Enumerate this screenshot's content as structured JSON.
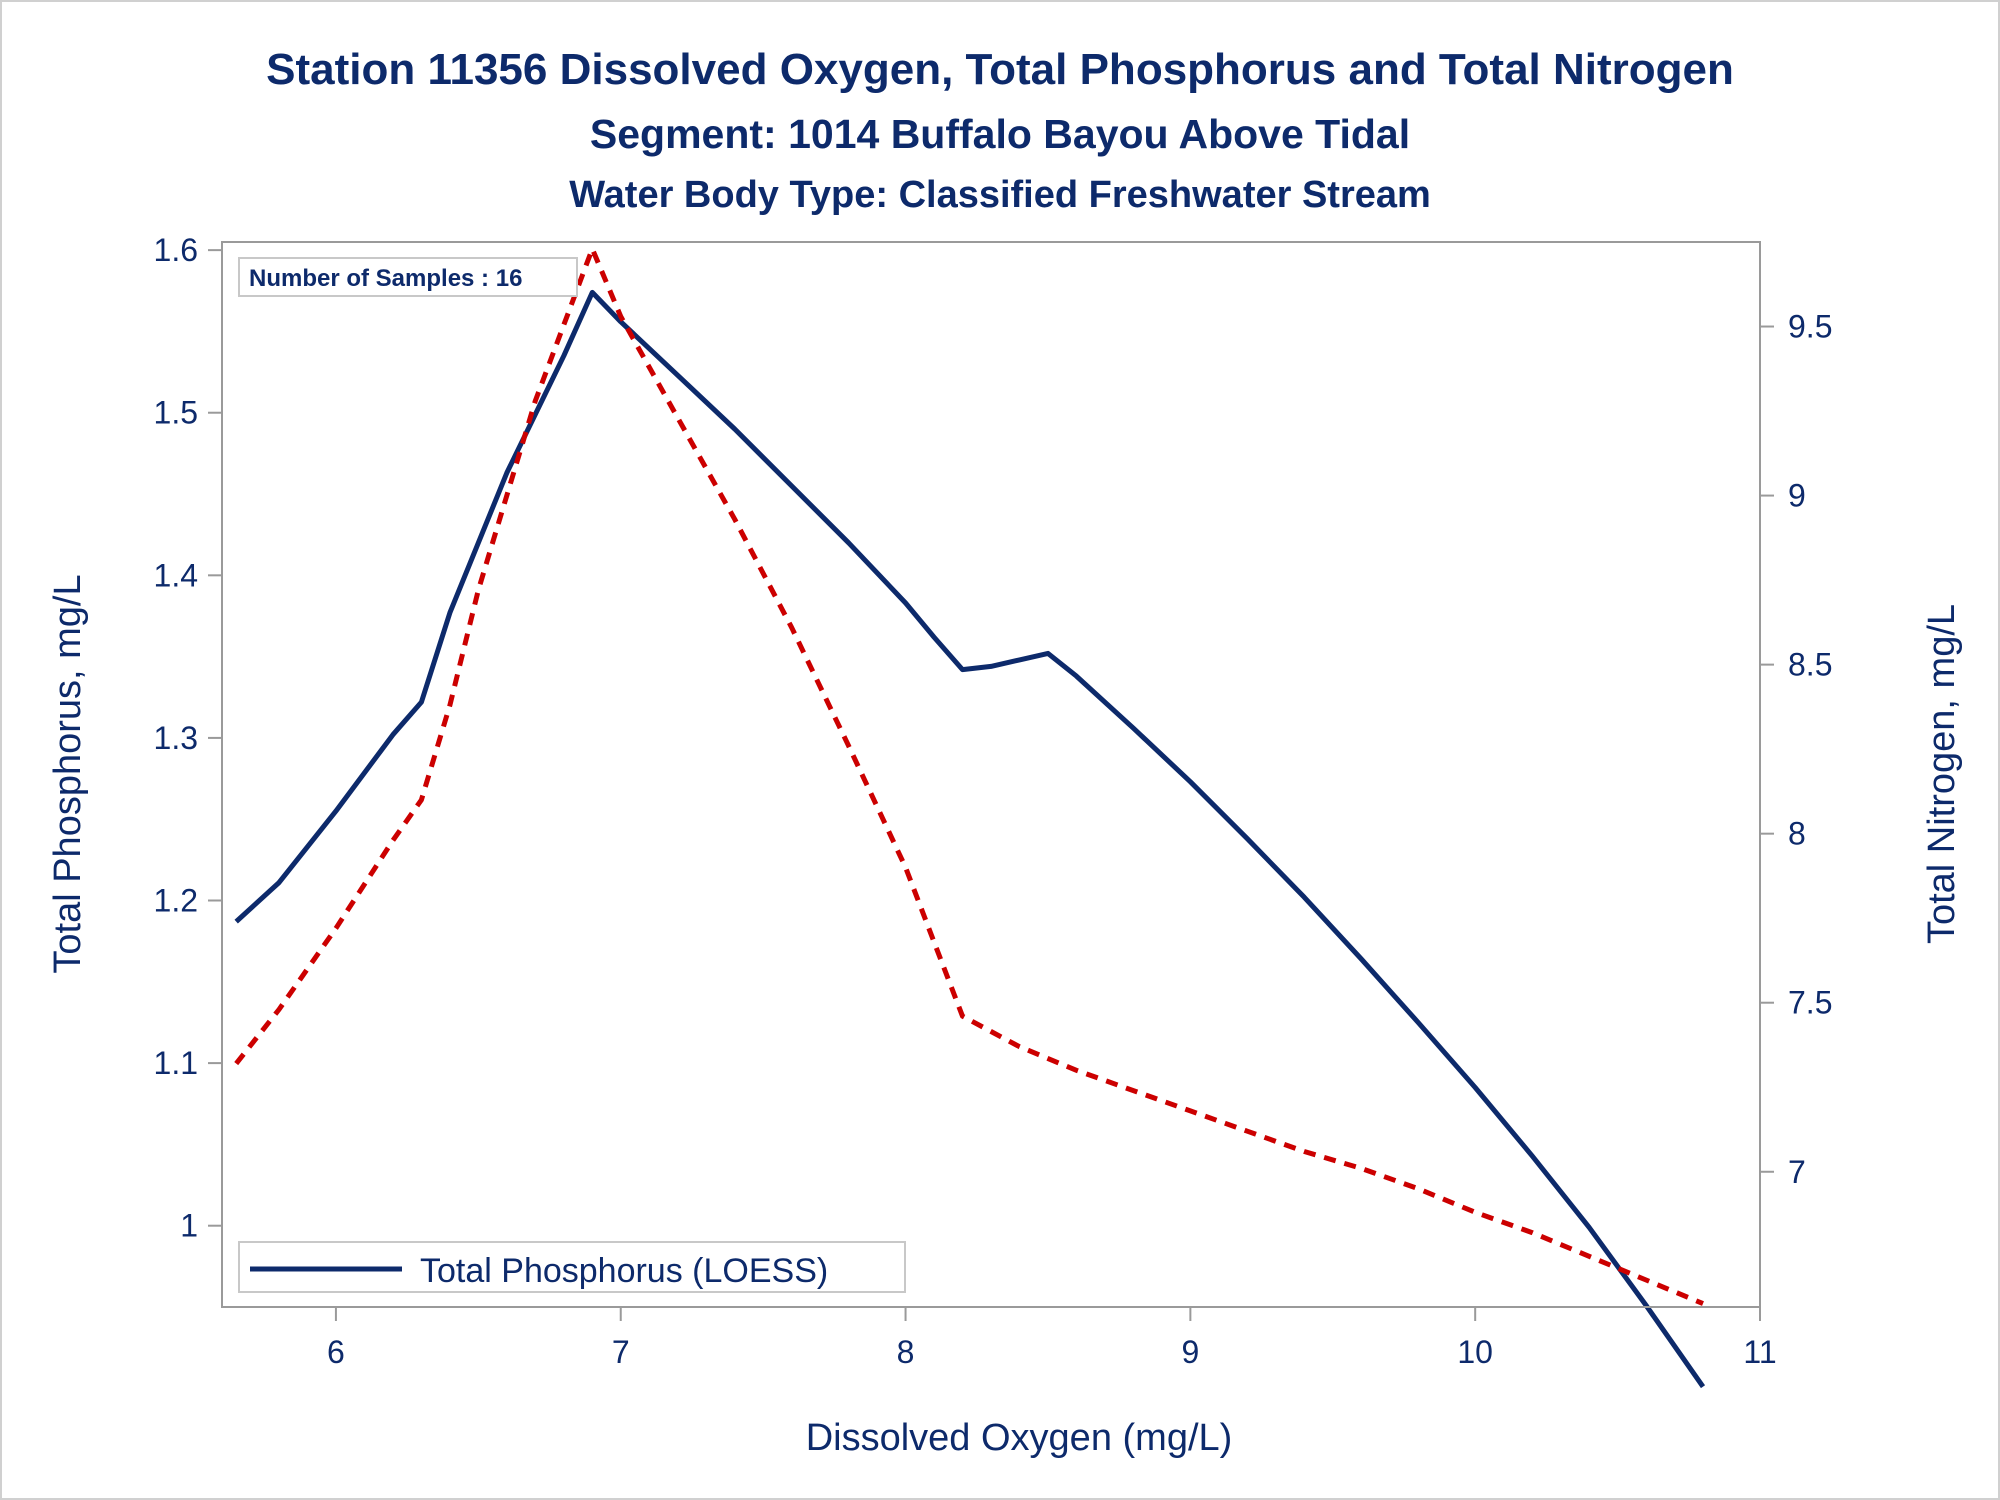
{
  "chart_data": {
    "type": "line",
    "title": "Station 11356  Dissolved Oxygen, Total Phosphorus and Total Nitrogen",
    "subtitle": "Segment: 1014  Buffalo Bayou Above Tidal",
    "subtitle2": "Water Body Type: Classified Freshwater Stream",
    "xlabel": "Dissolved Oxygen (mg/L)",
    "ylabel": "Total Phosphorus, mg/L",
    "y2label": "Total Nitrogen, mg/L",
    "xlim": [
      5.6,
      11
    ],
    "ylim": [
      0.95,
      1.605
    ],
    "y2lim": [
      6.6,
      9.75
    ],
    "x_ticks": [
      "6",
      "7",
      "8",
      "9",
      "10",
      "11"
    ],
    "y_ticks": [
      "1",
      "1.1",
      "1.2",
      "1.3",
      "1.4",
      "1.5",
      "1.6"
    ],
    "y2_ticks": [
      "7",
      "7.5",
      "8",
      "8.5",
      "9",
      "9.5"
    ],
    "annotation": "Number of Samples : 16",
    "legend": {
      "placement": "bottom-left",
      "entries": [
        "Total Phosphorus (LOESS)"
      ]
    },
    "colors": {
      "phosphorus": "#0d2a6b",
      "nitrogen": "#cc0000",
      "axis": "#9a9a9a",
      "text": "#0d2a6b"
    },
    "series": [
      {
        "name": "Total Phosphorus (LOESS)",
        "axis": "left",
        "style": "solid",
        "x": [
          5.65,
          5.8,
          6.0,
          6.2,
          6.3,
          6.4,
          6.6,
          6.8,
          6.9,
          7.0,
          7.2,
          7.4,
          7.6,
          7.8,
          8.0,
          8.1,
          8.2,
          8.3,
          8.4,
          8.5,
          8.6,
          8.8,
          9.0,
          9.2,
          9.4,
          9.6,
          9.8,
          10.0,
          10.2,
          10.4,
          10.6,
          10.8
        ],
        "values": [
          1.187,
          1.211,
          1.255,
          1.302,
          1.322,
          1.377,
          1.463,
          1.535,
          1.574,
          1.556,
          1.523,
          1.49,
          1.455,
          1.42,
          1.383,
          1.362,
          1.342,
          1.344,
          1.348,
          1.352,
          1.338,
          1.306,
          1.273,
          1.238,
          1.202,
          1.164,
          1.125,
          1.085,
          1.043,
          0.999,
          0.951,
          0.901
        ]
      },
      {
        "name": "Total Nitrogen",
        "axis": "right",
        "style": "dashed",
        "x": [
          5.65,
          5.8,
          6.0,
          6.2,
          6.3,
          6.4,
          6.5,
          6.7,
          6.9,
          7.0,
          7.2,
          7.4,
          7.6,
          7.8,
          8.0,
          8.1,
          8.2,
          8.4,
          8.6,
          8.8,
          9.0,
          9.2,
          9.4,
          9.6,
          9.8,
          10.0,
          10.2,
          10.4,
          10.6,
          10.8
        ],
        "values": [
          7.32,
          7.48,
          7.72,
          7.98,
          8.1,
          8.38,
          8.72,
          9.28,
          9.73,
          9.53,
          9.23,
          8.93,
          8.61,
          8.26,
          7.9,
          7.68,
          7.46,
          7.37,
          7.3,
          7.24,
          7.18,
          7.12,
          7.06,
          7.01,
          6.95,
          6.88,
          6.82,
          6.75,
          6.68,
          6.61
        ]
      }
    ]
  }
}
